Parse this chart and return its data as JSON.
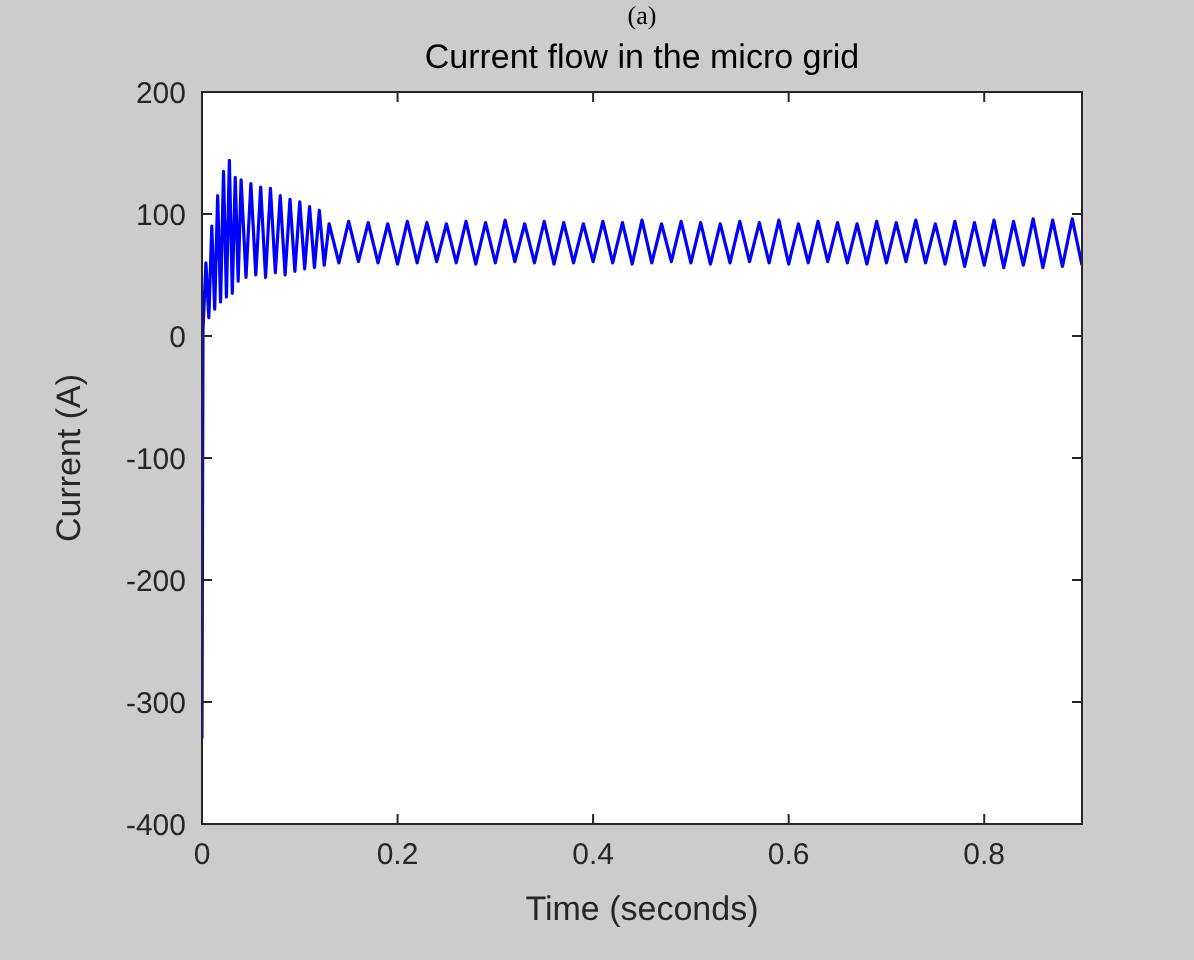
{
  "chart_data": {
    "type": "line",
    "title": "Current flow in the micro grid",
    "xlabel": "Time (seconds)",
    "ylabel": "Current (A)",
    "annotations": [
      "(a)"
    ],
    "xlim": [
      0,
      0.9
    ],
    "xticks": [
      0,
      0.2,
      0.4,
      0.6,
      0.8
    ],
    "ylim": [
      -400,
      200
    ],
    "yticks": [
      -400,
      -300,
      -200,
      -100,
      0,
      100,
      200
    ],
    "grid": false,
    "marker": "none",
    "line_style": "solid",
    "series": [
      {
        "color": "#0000ff",
        "x": [
          0,
          0.001,
          0.004,
          0.007,
          0.01,
          0.013,
          0.016,
          0.019,
          0.022,
          0.025,
          0.028,
          0.031,
          0.034,
          0.037,
          0.04,
          0.045,
          0.05,
          0.055,
          0.06,
          0.065,
          0.07,
          0.075,
          0.08,
          0.085,
          0.09,
          0.095,
          0.1,
          0.105,
          0.11,
          0.115,
          0.12,
          0.125,
          0.13,
          0.14,
          0.15,
          0.16,
          0.17,
          0.18,
          0.19,
          0.2,
          0.21,
          0.22,
          0.23,
          0.24,
          0.25,
          0.26,
          0.27,
          0.28,
          0.29,
          0.3,
          0.31,
          0.32,
          0.33,
          0.34,
          0.35,
          0.36,
          0.37,
          0.38,
          0.39,
          0.4,
          0.41,
          0.42,
          0.43,
          0.44,
          0.45,
          0.46,
          0.47,
          0.48,
          0.49,
          0.5,
          0.51,
          0.52,
          0.53,
          0.54,
          0.55,
          0.56,
          0.57,
          0.58,
          0.59,
          0.6,
          0.61,
          0.62,
          0.63,
          0.64,
          0.65,
          0.66,
          0.67,
          0.68,
          0.69,
          0.7,
          0.71,
          0.72,
          0.73,
          0.74,
          0.75,
          0.76,
          0.77,
          0.78,
          0.79,
          0.8,
          0.81,
          0.82,
          0.83,
          0.84,
          0.85,
          0.86,
          0.87,
          0.88,
          0.89,
          0.9
        ],
        "values": [
          -330,
          5,
          60,
          15,
          90,
          22,
          115,
          28,
          135,
          32,
          144,
          35,
          130,
          45,
          128,
          48,
          125,
          50,
          122,
          48,
          121,
          52,
          115,
          50,
          112,
          53,
          110,
          55,
          106,
          56,
          103,
          58,
          92,
          60,
          94,
          61,
          93,
          60,
          92,
          59,
          94,
          60,
          93,
          61,
          92,
          60,
          94,
          59,
          93,
          60,
          95,
          61,
          92,
          60,
          94,
          59,
          93,
          60,
          92,
          61,
          94,
          60,
          93,
          59,
          95,
          60,
          92,
          61,
          94,
          60,
          93,
          59,
          92,
          60,
          94,
          61,
          93,
          60,
          95,
          59,
          92,
          60,
          94,
          61,
          93,
          60,
          92,
          59,
          94,
          60,
          93,
          61,
          95,
          60,
          92,
          59,
          94,
          57,
          93,
          58,
          95,
          56,
          94,
          58,
          96,
          56,
          95,
          57,
          96,
          58
        ]
      }
    ]
  }
}
